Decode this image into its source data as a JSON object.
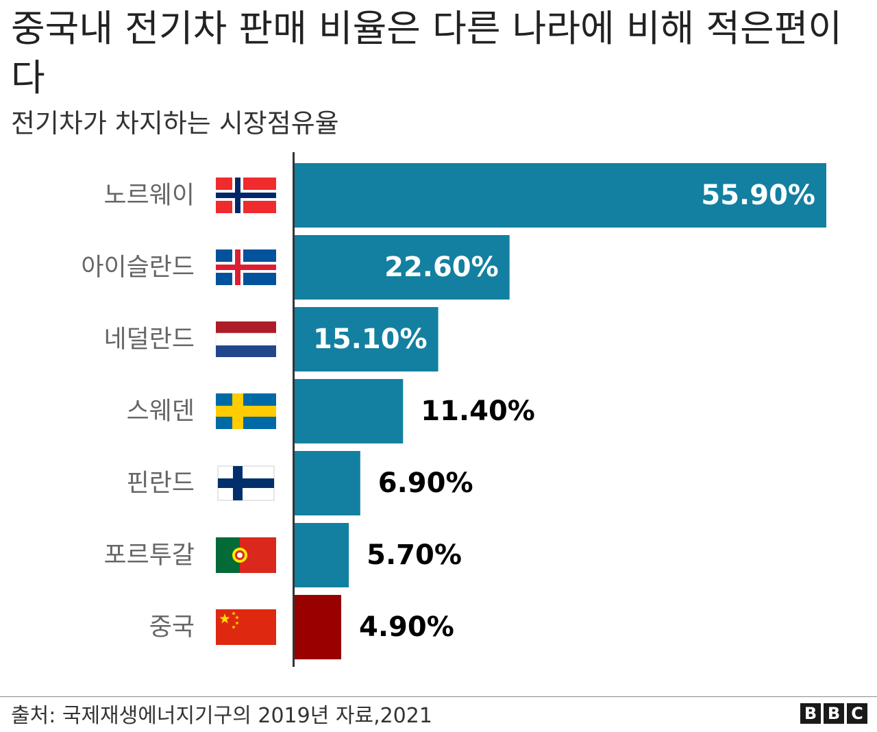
{
  "header": {
    "title": "중국내 전기차 판매 비율은 다른 나라에 비해 적은편이다",
    "subtitle": "전기차가 차지하는 시장점유율"
  },
  "chart_data": {
    "type": "bar",
    "orientation": "horizontal",
    "categories": [
      "노르웨이",
      "아이슬란드",
      "네덜란드",
      "스웨덴",
      "핀란드",
      "포르투갈",
      "중국"
    ],
    "values": [
      55.9,
      22.6,
      15.1,
      11.4,
      6.9,
      5.7,
      4.9
    ],
    "value_labels": [
      "55.90%",
      "22.60%",
      "15.10%",
      "11.40%",
      "6.90%",
      "5.70%",
      "4.90%"
    ],
    "flags": [
      "norway-flag",
      "iceland-flag",
      "netherlands-flag",
      "sweden-flag",
      "finland-flag",
      "portugal-flag",
      "china-flag"
    ],
    "colors": {
      "default_bar": "#1380A1",
      "highlight_bar": "#990000",
      "highlight_category": "중국",
      "label_inside": "#ffffff",
      "label_outside": "#000000"
    },
    "xlim": [
      0,
      56
    ],
    "grid": false,
    "legend": "none"
  },
  "footer": {
    "source": "출처: 국제재생에너지기구의 2019년 자료,2021",
    "logo": [
      "B",
      "B",
      "C"
    ]
  }
}
